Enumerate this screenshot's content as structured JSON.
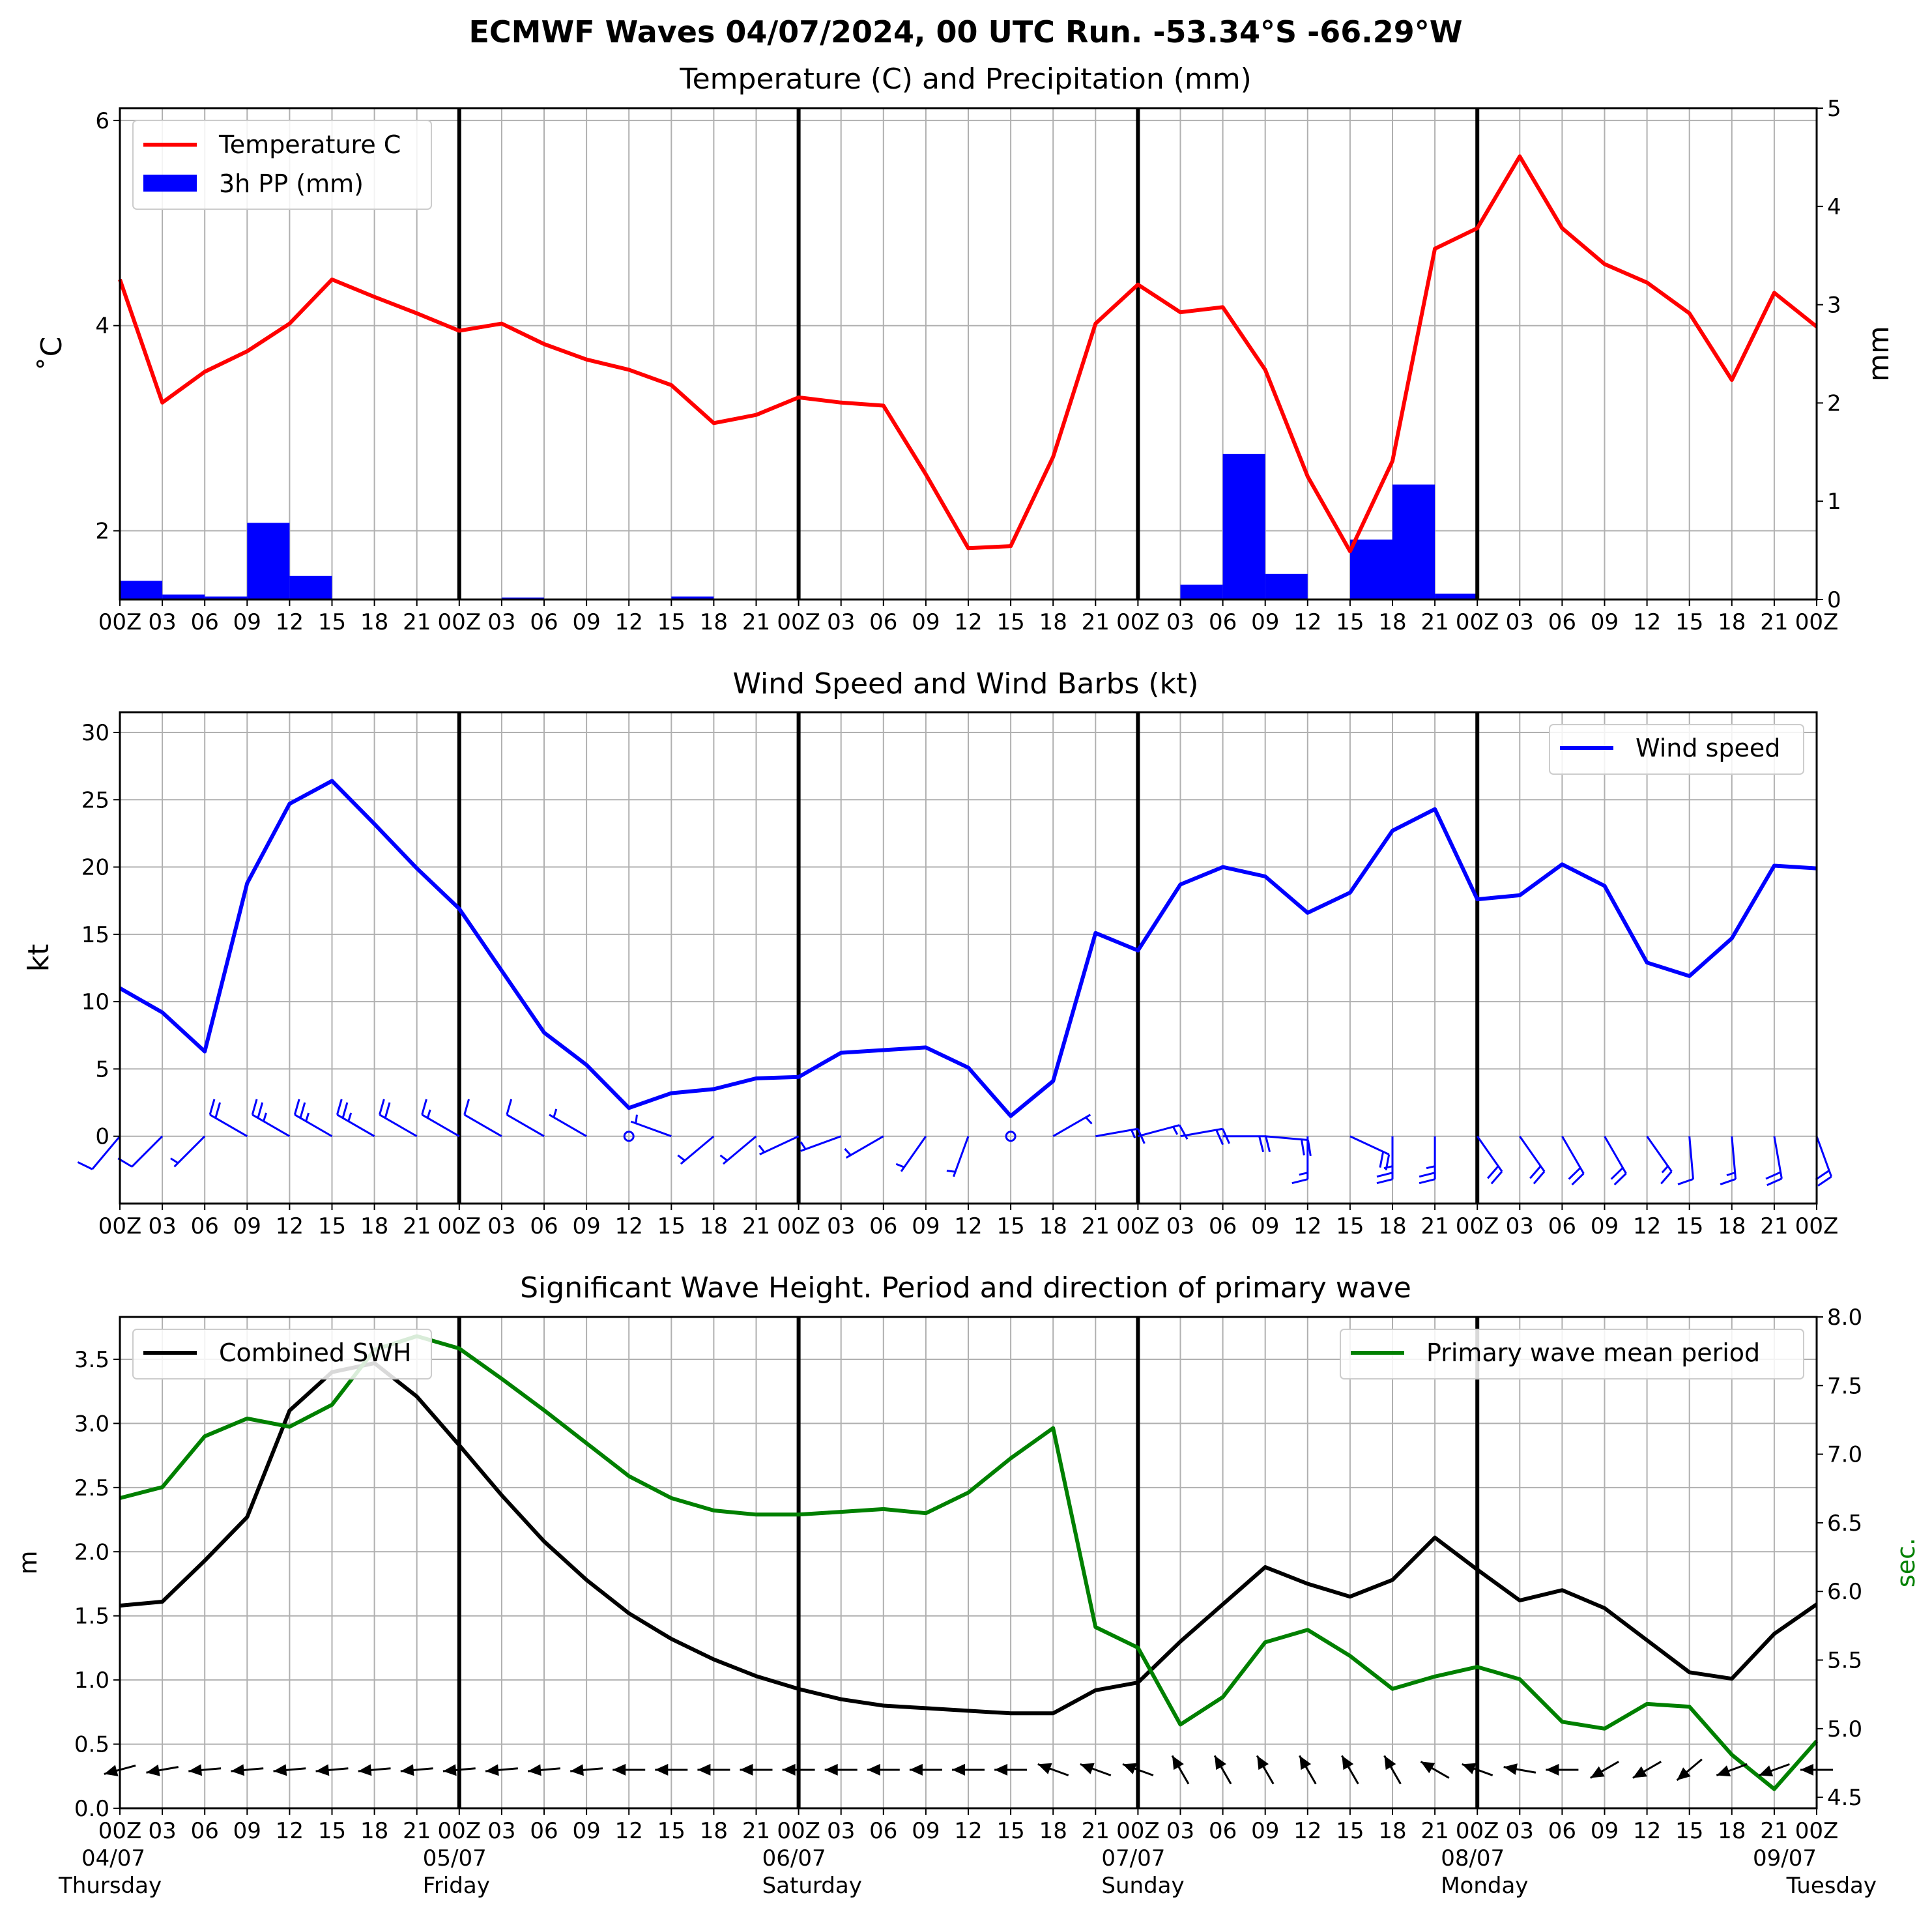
{
  "title": "ECMWF Waves 04/07/2024, 00 UTC Run. -53.34°S -66.29°W",
  "colors": {
    "temperature": "#ff0000",
    "precip": "#0000ff",
    "wind": "#0000ff",
    "swh": "#000000",
    "period": "#008000",
    "grid": "#b0b0b0"
  },
  "x_tick_labels": [
    "00Z",
    "03",
    "06",
    "09",
    "12",
    "15",
    "18",
    "21",
    "00Z",
    "03",
    "06",
    "09",
    "12",
    "15",
    "18",
    "21",
    "00Z",
    "03",
    "06",
    "09",
    "12",
    "15",
    "18",
    "21",
    "00Z",
    "03",
    "06",
    "09",
    "12",
    "15",
    "18",
    "21",
    "00Z",
    "03",
    "06",
    "09",
    "12",
    "15",
    "18",
    "21",
    "00Z"
  ],
  "x_tick_labels_bottom": [
    "00Z",
    "03",
    "06",
    "09",
    "12",
    "15",
    "18",
    "21",
    "00Z",
    "03",
    "06",
    "09",
    "12",
    "15",
    "18",
    "21",
    "00Z",
    "03",
    "06",
    "09",
    "12",
    "15",
    "18",
    "21",
    "00Z",
    "03",
    "06",
    "09",
    "12",
    "15",
    "18",
    "21",
    "00Z",
    "03",
    "06",
    "09",
    "12",
    "15",
    "18",
    "21",
    "00Z"
  ],
  "day_labels": [
    {
      "date": "04/07",
      "day": "Thursday"
    },
    {
      "date": "05/07",
      "day": "Friday"
    },
    {
      "date": "06/07",
      "day": "Saturday"
    },
    {
      "date": "07/07",
      "day": "Sunday"
    },
    {
      "date": "08/07",
      "day": "Monday"
    },
    {
      "date": "09/07",
      "day": "Tuesday"
    }
  ],
  "chart_data": [
    {
      "type": "line",
      "title": "Temperature (C) and Precipitation (mm)",
      "ylabel": "$^\\circ$C",
      "ylabel_display": "˚C",
      "y2label": "mm",
      "ylim": [
        1.33,
        6.12
      ],
      "y2lim": [
        0,
        5
      ],
      "yticks": [
        "2",
        "4",
        "6"
      ],
      "y2ticks": [
        "0",
        "1",
        "2",
        "3",
        "4",
        "5"
      ],
      "legend": {
        "position": "upper left",
        "entries": [
          "Temperature C",
          "3h PP (mm)"
        ]
      },
      "x_hours": [
        0,
        3,
        6,
        9,
        12,
        15,
        18,
        21,
        24,
        27,
        30,
        33,
        36,
        39,
        42,
        45,
        48,
        51,
        54,
        57,
        60,
        63,
        66,
        69,
        72,
        75,
        78,
        81,
        84,
        87,
        90,
        93,
        96,
        99,
        102,
        105,
        108,
        111,
        114,
        117,
        120
      ],
      "series": [
        {
          "name": "Temperature C",
          "kind": "line",
          "axis": "left",
          "values": [
            4.45,
            3.25,
            3.55,
            3.75,
            4.02,
            4.45,
            4.28,
            4.12,
            3.95,
            4.02,
            3.82,
            3.67,
            3.57,
            3.42,
            3.05,
            3.13,
            3.3,
            3.25,
            3.22,
            2.55,
            1.83,
            1.85,
            2.72,
            4.02,
            4.4,
            4.13,
            4.18,
            3.57,
            2.53,
            1.8,
            2.68,
            4.75,
            4.95,
            5.65,
            4.95,
            4.6,
            4.42,
            4.12,
            3.47,
            4.32,
            3.99
          ]
        },
        {
          "name": "3h PP (mm)",
          "kind": "bar",
          "axis": "right",
          "values": [
            0.19,
            0.05,
            0.03,
            0.78,
            0.24,
            0,
            0,
            0,
            0,
            0.02,
            0,
            0,
            0,
            0.03,
            0,
            0,
            0,
            0,
            0.01,
            0,
            0,
            0,
            0,
            0,
            0.01,
            0.15,
            1.48,
            0.26,
            0,
            0.61,
            1.17,
            0.06,
            0,
            0,
            0,
            0,
            0,
            0,
            0,
            0
          ]
        }
      ]
    },
    {
      "type": "line",
      "title": "Wind Speed and Wind Barbs (kt)",
      "ylabel": "kt",
      "ylim": [
        -5,
        31.5
      ],
      "yticks": [
        "0",
        "5",
        "10",
        "15",
        "20",
        "25",
        "30"
      ],
      "legend": {
        "position": "upper right",
        "entries": [
          "Wind speed"
        ]
      },
      "x_hours": [
        0,
        3,
        6,
        9,
        12,
        15,
        18,
        21,
        24,
        27,
        30,
        33,
        36,
        39,
        42,
        45,
        48,
        51,
        54,
        57,
        60,
        63,
        66,
        69,
        72,
        75,
        78,
        81,
        84,
        87,
        90,
        93,
        96,
        99,
        102,
        105,
        108,
        111,
        114,
        117,
        120
      ],
      "series": [
        {
          "name": "Wind speed",
          "values": [
            11.0,
            9.2,
            6.3,
            18.8,
            24.7,
            26.4,
            23.2,
            19.9,
            16.9,
            12.3,
            7.7,
            5.3,
            2.1,
            3.2,
            3.5,
            4.3,
            4.4,
            6.2,
            6.4,
            6.6,
            5.1,
            1.5,
            4.1,
            15.1,
            13.8,
            18.7,
            20.0,
            19.3,
            16.6,
            18.1,
            22.7,
            24.3,
            17.6,
            17.9,
            20.2,
            18.6,
            12.9,
            11.9,
            14.7,
            20.1,
            19.9
          ]
        }
      ],
      "barb_dirs_deg": [
        220,
        225,
        225,
        300,
        300,
        300,
        300,
        300,
        300,
        300,
        300,
        300,
        0,
        290,
        230,
        230,
        245,
        250,
        240,
        215,
        200,
        0,
        60,
        80,
        75,
        80,
        90,
        95,
        180,
        115,
        180,
        180,
        145,
        145,
        150,
        150,
        145,
        175,
        175,
        170,
        160
      ]
    },
    {
      "type": "line",
      "title": "Significant Wave Height. Period and direction of primary wave",
      "ylabel": "m",
      "y2label": "sec.",
      "ylim": [
        0,
        3.83
      ],
      "y2lim": [
        4.42,
        8.0
      ],
      "yticks": [
        "0.0",
        "0.5",
        "1.0",
        "1.5",
        "2.0",
        "2.5",
        "3.0",
        "3.5"
      ],
      "y2ticks": [
        "4.5",
        "5.0",
        "5.5",
        "6.0",
        "6.5",
        "7.0",
        "7.5",
        "8.0"
      ],
      "legend": [
        {
          "position": "upper left",
          "entries": [
            "Combined SWH"
          ]
        },
        {
          "position": "upper right",
          "entries": [
            "Primary wave mean period"
          ]
        }
      ],
      "x_hours": [
        0,
        3,
        6,
        9,
        12,
        15,
        18,
        21,
        24,
        27,
        30,
        33,
        36,
        39,
        42,
        45,
        48,
        51,
        54,
        57,
        60,
        63,
        66,
        69,
        72,
        75,
        78,
        81,
        84,
        87,
        90,
        93,
        96,
        99,
        102,
        105,
        108,
        111,
        114,
        117,
        120
      ],
      "series": [
        {
          "name": "Combined SWH",
          "axis": "left",
          "values": [
            1.58,
            1.61,
            1.93,
            2.27,
            3.1,
            3.4,
            3.47,
            3.21,
            2.83,
            2.44,
            2.08,
            1.78,
            1.52,
            1.32,
            1.16,
            1.03,
            0.93,
            0.85,
            0.8,
            0.78,
            0.76,
            0.74,
            0.74,
            0.92,
            0.98,
            1.3,
            1.59,
            1.88,
            1.75,
            1.65,
            1.78,
            2.11,
            1.86,
            1.62,
            1.7,
            1.56,
            1.31,
            1.06,
            1.01,
            1.36,
            1.59
          ]
        },
        {
          "name": "Primary wave mean period",
          "axis": "right",
          "values": [
            6.68,
            6.76,
            7.13,
            7.26,
            7.2,
            7.36,
            7.76,
            7.86,
            7.77,
            7.55,
            7.32,
            7.08,
            6.84,
            6.68,
            6.59,
            6.56,
            6.56,
            6.58,
            6.6,
            6.57,
            6.72,
            6.97,
            7.19,
            5.74,
            5.59,
            5.03,
            5.23,
            5.63,
            5.72,
            5.53,
            5.29,
            5.38,
            5.45,
            5.36,
            5.05,
            5.0,
            5.18,
            5.16,
            4.81,
            4.56,
            4.91
          ]
        }
      ],
      "wave_dir_deg": [
        255,
        260,
        265,
        265,
        265,
        265,
        265,
        265,
        265,
        265,
        265,
        265,
        270,
        270,
        270,
        270,
        270,
        270,
        270,
        270,
        270,
        270,
        290,
        290,
        290,
        330,
        330,
        330,
        330,
        330,
        330,
        300,
        290,
        280,
        270,
        240,
        240,
        230,
        250,
        250,
        270
      ]
    }
  ]
}
